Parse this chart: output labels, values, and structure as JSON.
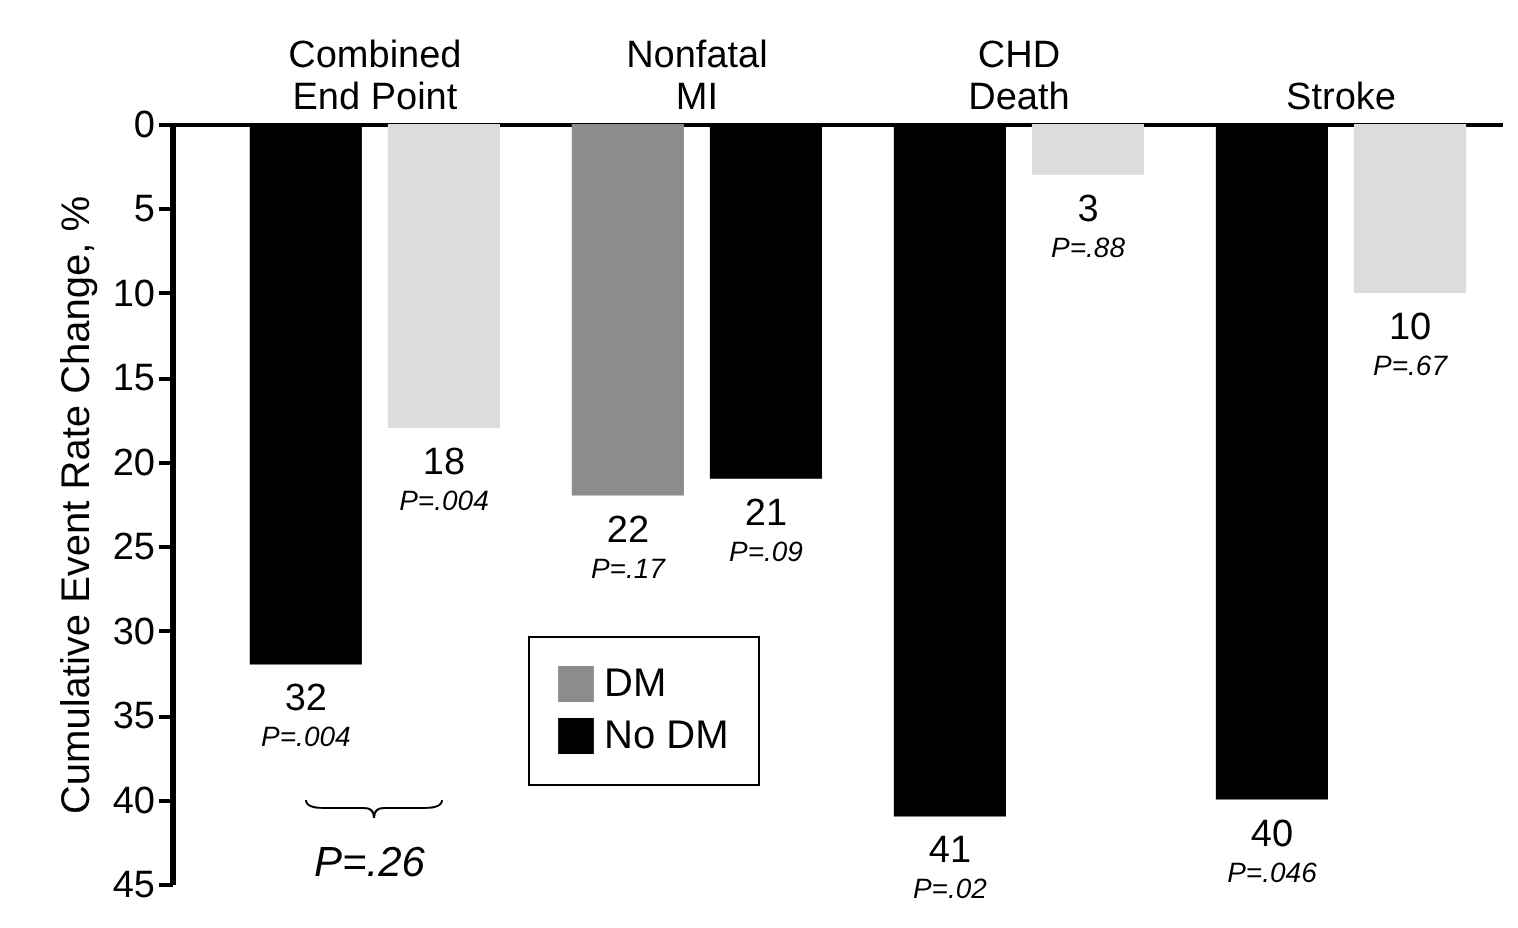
{
  "chart_data": {
    "type": "bar",
    "ylabel": "Cumulative Event Rate Change, %",
    "categories": [
      "Combined\nEnd Point",
      "Nonfatal\nMI",
      "CHD\nDeath",
      "Stroke"
    ],
    "series": [
      {
        "name": "DM",
        "color": "#8c8c8c",
        "values": [
          null,
          22,
          null,
          null
        ],
        "value_labels": [
          null,
          "22\nP=.17",
          null,
          null
        ]
      },
      {
        "name": "No DM",
        "color": "#000000",
        "values": [
          32,
          21,
          41,
          40
        ],
        "value_labels": [
          "32\nP=.004",
          "21\nP=.09",
          "41\nP=.02",
          "40\nP=.046"
        ]
      },
      {
        "color": "#dcdcdc",
        "values": [
          18,
          null,
          3,
          10
        ],
        "value_labels": [
          "18\nP=.004",
          null,
          "3\nP=.88",
          "10\nP=.67"
        ]
      }
    ],
    "ylim": [
      45,
      0
    ],
    "yticks": [
      0,
      5,
      10,
      15,
      20,
      25,
      30,
      35,
      40,
      45
    ],
    "grid": false,
    "legend": "bottom",
    "annotations": [
      "P=.26"
    ]
  }
}
